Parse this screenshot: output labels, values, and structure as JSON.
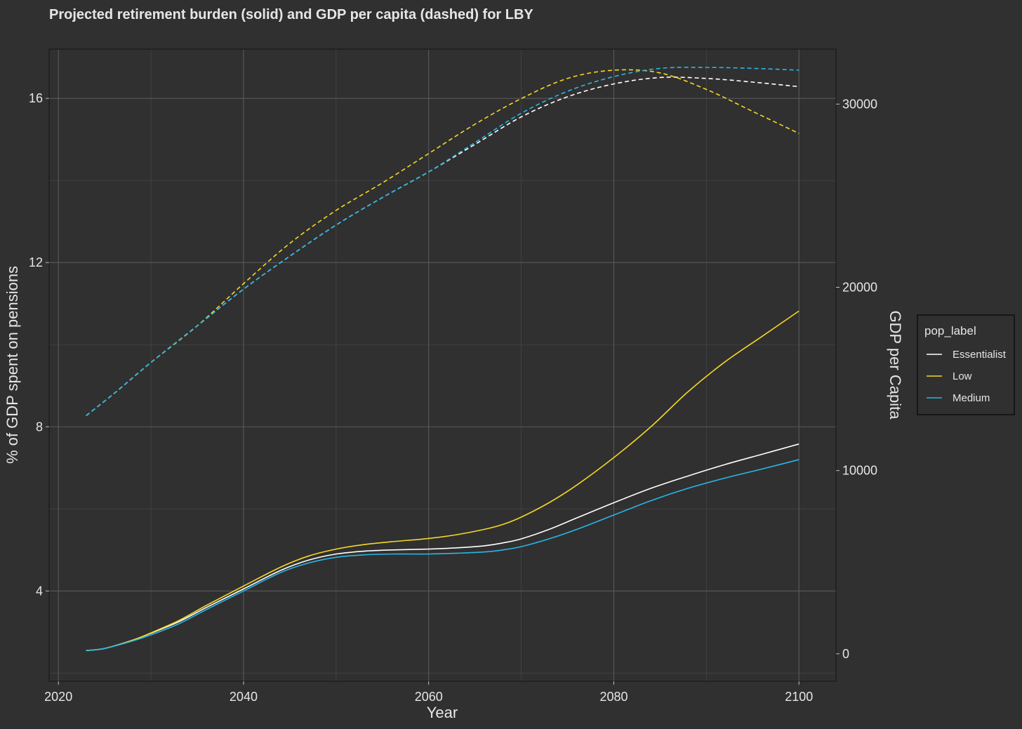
{
  "chart_data": {
    "type": "line",
    "title": "Projected retirement burden (solid) and GDP per capita (dashed) for LBY",
    "xlabel": "Year",
    "ylabel": "% of GDP spent on pensions",
    "y2label": "GDP per Capita",
    "xlim": [
      2019,
      2104
    ],
    "ylim": [
      1.8,
      17.2
    ],
    "y2lim": [
      -1500,
      33000
    ],
    "x_ticks": [
      2020,
      2040,
      2060,
      2080,
      2100
    ],
    "x_tick_labels": [
      "2020",
      "2040",
      "2060",
      "2080",
      "2100"
    ],
    "y_ticks": [
      4,
      8,
      12,
      16
    ],
    "y_tick_labels": [
      "4",
      "8",
      "12",
      "16"
    ],
    "y_minor_ticks": [
      2,
      6,
      10,
      14
    ],
    "y2_ticks": [
      0,
      10000,
      20000,
      30000
    ],
    "y2_tick_labels": [
      "0",
      "10000",
      "20000",
      "30000"
    ],
    "grid": true,
    "legend": {
      "title": "pop_label",
      "position": "right",
      "entries": [
        {
          "label": "Essentialist",
          "color": "#ffffff"
        },
        {
          "label": "Low",
          "color": "#f5d727"
        },
        {
          "label": "Medium",
          "color": "#29b6e8"
        }
      ]
    },
    "series": [
      {
        "name": "Essentialist",
        "metric": "pension_pct",
        "axis": "left",
        "style": "solid",
        "color": "#ffffff",
        "x": [
          2023,
          2025,
          2028,
          2030,
          2033,
          2036,
          2040,
          2044,
          2047,
          2050,
          2053,
          2056,
          2060,
          2063,
          2066,
          2068,
          2070,
          2073,
          2076,
          2080,
          2084,
          2088,
          2092,
          2096,
          2100
        ],
        "values": [
          2.55,
          2.6,
          2.8,
          2.97,
          3.25,
          3.6,
          4.05,
          4.5,
          4.75,
          4.9,
          4.97,
          5.0,
          5.02,
          5.05,
          5.1,
          5.17,
          5.27,
          5.5,
          5.78,
          6.15,
          6.5,
          6.8,
          7.08,
          7.33,
          7.58
        ]
      },
      {
        "name": "Low",
        "metric": "pension_pct",
        "axis": "left",
        "style": "solid",
        "color": "#f5d727",
        "x": [
          2023,
          2025,
          2028,
          2030,
          2033,
          2036,
          2040,
          2044,
          2047,
          2050,
          2053,
          2056,
          2060,
          2063,
          2066,
          2068,
          2070,
          2073,
          2076,
          2080,
          2084,
          2088,
          2092,
          2096,
          2100
        ],
        "values": [
          2.55,
          2.6,
          2.8,
          2.98,
          3.28,
          3.65,
          4.12,
          4.58,
          4.85,
          5.02,
          5.13,
          5.2,
          5.28,
          5.37,
          5.5,
          5.62,
          5.8,
          6.15,
          6.58,
          7.25,
          8.0,
          8.85,
          9.58,
          10.2,
          10.82
        ]
      },
      {
        "name": "Medium",
        "metric": "pension_pct",
        "axis": "left",
        "style": "solid",
        "color": "#29b6e8",
        "x": [
          2023,
          2025,
          2028,
          2030,
          2033,
          2036,
          2040,
          2044,
          2047,
          2050,
          2053,
          2056,
          2060,
          2063,
          2066,
          2068,
          2070,
          2073,
          2076,
          2080,
          2084,
          2088,
          2092,
          2096,
          2100
        ],
        "values": [
          2.55,
          2.6,
          2.78,
          2.93,
          3.2,
          3.55,
          4.0,
          4.45,
          4.68,
          4.82,
          4.88,
          4.9,
          4.9,
          4.92,
          4.95,
          5.0,
          5.08,
          5.27,
          5.5,
          5.85,
          6.2,
          6.5,
          6.75,
          6.97,
          7.2
        ]
      },
      {
        "name": "Essentialist",
        "metric": "gdp_per_capita",
        "axis": "right",
        "style": "dashed",
        "color": "#ffffff",
        "x": [
          2023,
          2026,
          2030,
          2035,
          2040,
          2045,
          2050,
          2055,
          2060,
          2065,
          2070,
          2075,
          2080,
          2085,
          2090,
          2095,
          2100
        ],
        "values": [
          13000,
          14200,
          15900,
          17900,
          19900,
          21700,
          23400,
          24900,
          26300,
          27800,
          29300,
          30400,
          31100,
          31450,
          31400,
          31200,
          30950
        ]
      },
      {
        "name": "Low",
        "metric": "gdp_per_capita",
        "axis": "right",
        "style": "dashed",
        "color": "#f5d727",
        "x": [
          2023,
          2026,
          2030,
          2035,
          2040,
          2045,
          2050,
          2055,
          2060,
          2065,
          2070,
          2075,
          2080,
          2085,
          2090,
          2095,
          2100
        ],
        "values": [
          13000,
          14200,
          15900,
          17900,
          20200,
          22400,
          24200,
          25700,
          27300,
          28900,
          30300,
          31400,
          31850,
          31700,
          30800,
          29600,
          28400
        ]
      },
      {
        "name": "Medium",
        "metric": "gdp_per_capita",
        "axis": "right",
        "style": "dashed",
        "color": "#29b6e8",
        "x": [
          2023,
          2026,
          2030,
          2035,
          2040,
          2045,
          2050,
          2055,
          2060,
          2065,
          2070,
          2075,
          2080,
          2085,
          2090,
          2095,
          2100
        ],
        "values": [
          13000,
          14200,
          15900,
          17900,
          19900,
          21700,
          23400,
          24900,
          26300,
          27900,
          29500,
          30700,
          31500,
          31950,
          32000,
          31950,
          31850
        ]
      }
    ]
  }
}
